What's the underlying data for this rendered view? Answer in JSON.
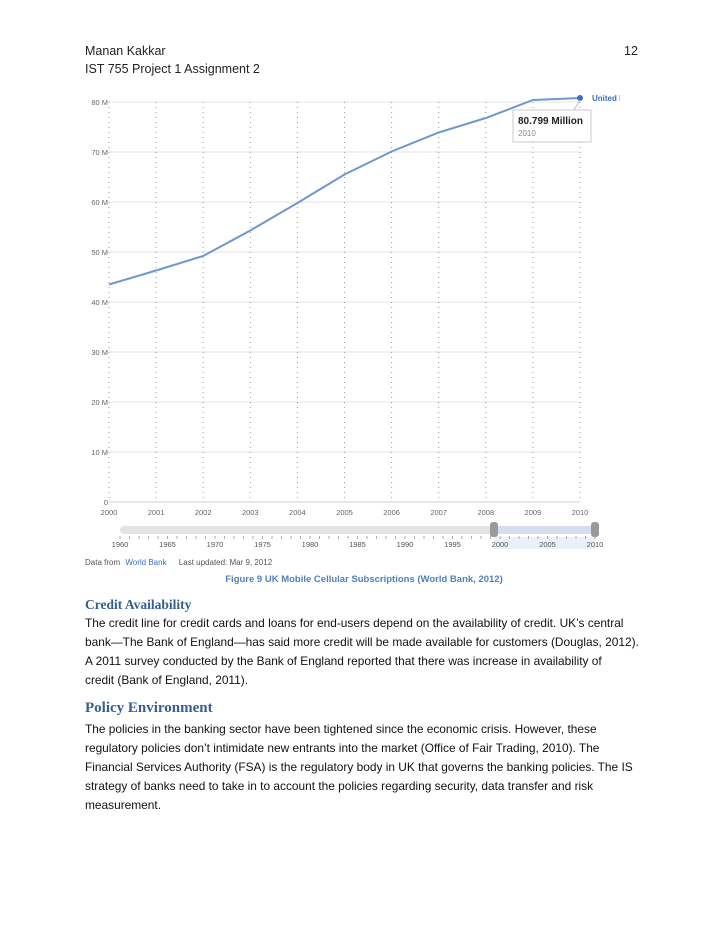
{
  "header": {
    "author": "Manan Kakkar",
    "course": "IST 755 Project 1 Assignment 2",
    "page_number": "12"
  },
  "chart_data": {
    "type": "line",
    "x": [
      2000,
      2001,
      2002,
      2003,
      2004,
      2005,
      2006,
      2007,
      2008,
      2009,
      2010
    ],
    "series": [
      {
        "name": "United Kingdom",
        "values": [
          43.5,
          46.3,
          49.2,
          54.3,
          59.8,
          65.5,
          70.1,
          73.9,
          76.8,
          80.4,
          80.8
        ]
      }
    ],
    "ylim": [
      0,
      80
    ],
    "y_ticks": [
      "0",
      "10 M",
      "20 M",
      "30 M",
      "40 M",
      "50 M",
      "60 M",
      "70 M",
      "80 M"
    ],
    "x_ticks": [
      "2000",
      "2001",
      "2002",
      "2003",
      "2004",
      "2005",
      "2006",
      "2007",
      "2008",
      "2009",
      "2010"
    ],
    "timeline_ticks": [
      "1960",
      "1965",
      "1970",
      "1975",
      "1980",
      "1985",
      "1990",
      "1995",
      "2000",
      "2005",
      "2010"
    ],
    "tooltip": {
      "value": "80.799 Million",
      "year": "2010"
    },
    "legend_close": "✕",
    "source_prefix": "Data from",
    "source_link": "World Bank",
    "last_updated": "Last updated: Mar 9, 2012",
    "grid": true,
    "legend": "top-right",
    "line_color": "#6f96d2"
  },
  "caption": "Figure 9 UK Mobile Cellular Subscriptions (World Bank, 2012)",
  "sections": [
    {
      "title": "Credit Availability",
      "lines": [
        "The credit line for credit cards and loans for end-users depend on the availability of credit. UK’s central",
        "bank—The Bank of England—has said more credit will be made available for customers (Douglas, 2012).",
        "A 2011 survey conducted by the Bank of England reported that there was increase in availability of",
        "credit (Bank of England, 2011)."
      ]
    },
    {
      "title": "Policy Environment",
      "lines": [
        "The policies in the banking sector have been tightened since the economic crisis. However, these",
        "regulatory policies don’t intimidate new entrants into the market (Office of Fair Trading, 2010). The",
        "Financial Services Authority (FSA) is the regulatory body in UK that governs the banking policies. The IS",
        "strategy of banks need to take in to account the policies regarding security, data transfer and risk",
        "measurement."
      ]
    }
  ]
}
